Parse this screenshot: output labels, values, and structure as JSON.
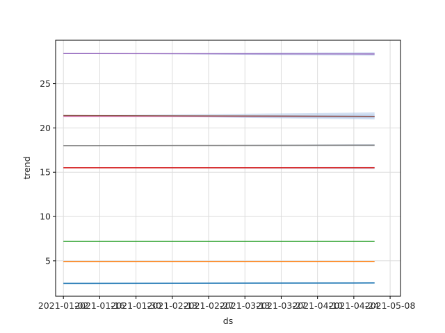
{
  "chart_data": {
    "type": "line",
    "title": "",
    "xlabel": "ds",
    "ylabel": "trend",
    "x_tick_labels": [
      "2021-01-02",
      "2021-01-16",
      "2021-01-30",
      "2021-02-13",
      "2021-02-27",
      "2021-03-13",
      "2021-03-27",
      "2021-04-10",
      "2021-04-24",
      "2021-05-08"
    ],
    "y_tick_labels": [
      "5",
      "10",
      "15",
      "20",
      "25"
    ],
    "y_ticks": [
      5,
      10,
      15,
      20,
      25
    ],
    "xlim": [
      "2020-12-30",
      "2021-05-12"
    ],
    "ylim": [
      1.0,
      29.9
    ],
    "grid": true,
    "x": [
      "2021-01-02",
      "2021-05-02"
    ],
    "series": [
      {
        "color": "#1f77b4",
        "values": [
          2.45,
          2.5
        ],
        "band": [
          [
            2.45,
            2.45
          ],
          [
            2.46,
            2.54
          ]
        ]
      },
      {
        "color": "#ff7f0e",
        "values": [
          4.9,
          4.92
        ],
        "band": [
          [
            4.9,
            4.9
          ],
          [
            4.88,
            4.96
          ]
        ]
      },
      {
        "color": "#2ca02c",
        "values": [
          7.2,
          7.2
        ],
        "band": [
          [
            7.2,
            7.2
          ],
          [
            7.16,
            7.24
          ]
        ]
      },
      {
        "color": "#d62728",
        "values": [
          15.5,
          15.5
        ],
        "band": [
          [
            15.5,
            15.5
          ],
          [
            15.35,
            15.6
          ]
        ]
      },
      {
        "color": "#7f7f7f",
        "values": [
          18.0,
          18.05
        ],
        "band": [
          [
            18.0,
            18.0
          ],
          [
            17.95,
            18.15
          ]
        ]
      },
      {
        "color": "#e377c2",
        "values": [
          21.3,
          21.3
        ],
        "band": [
          [
            21.3,
            21.3
          ],
          [
            21.1,
            21.5
          ]
        ]
      },
      {
        "color": "#8c564b",
        "values": [
          21.4,
          21.3
        ],
        "band": [
          [
            21.4,
            21.4
          ],
          [
            20.95,
            21.75
          ]
        ]
      },
      {
        "color": "#9467bd",
        "values": [
          28.4,
          28.35
        ],
        "band": [
          [
            28.4,
            28.4
          ],
          [
            28.15,
            28.55
          ]
        ]
      }
    ],
    "band_color": "#aec7e8"
  }
}
